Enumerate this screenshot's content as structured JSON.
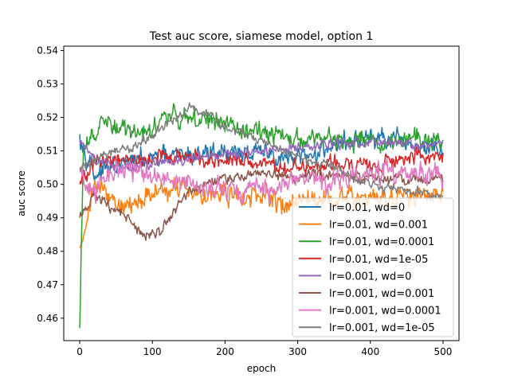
{
  "chart_data": {
    "type": "line",
    "title": "Test auc score, siamese model, option 1",
    "xlabel": "epoch",
    "ylabel": "auc score",
    "xlim": [
      -22,
      522
    ],
    "ylim": [
      0.4533,
      0.5413
    ],
    "xticks": [
      0,
      100,
      200,
      300,
      400,
      500
    ],
    "yticks": [
      0.46,
      0.47,
      0.48,
      0.49,
      0.5,
      0.51,
      0.52,
      0.53,
      0.54
    ],
    "ytick_labels": [
      "0.46",
      "0.47",
      "0.48",
      "0.49",
      "0.50",
      "0.51",
      "0.52",
      "0.53",
      "0.54"
    ],
    "grid": false,
    "legend_position": "lower-right",
    "epochs": 501,
    "series": [
      {
        "name": "lr=0.01, wd=0",
        "color": "#1f77b4",
        "keypoints": [
          [
            0,
            0.515
          ],
          [
            20,
            0.503
          ],
          [
            60,
            0.506
          ],
          [
            120,
            0.508
          ],
          [
            200,
            0.51
          ],
          [
            260,
            0.509
          ],
          [
            300,
            0.507
          ],
          [
            350,
            0.512
          ],
          [
            400,
            0.514
          ],
          [
            450,
            0.512
          ],
          [
            500,
            0.51
          ]
        ],
        "spread": 0.0075
      },
      {
        "name": "lr=0.01, wd=0.001",
        "color": "#ff7f0e",
        "keypoints": [
          [
            0,
            0.481
          ],
          [
            20,
            0.5
          ],
          [
            60,
            0.493
          ],
          [
            120,
            0.499
          ],
          [
            200,
            0.497
          ],
          [
            260,
            0.495
          ],
          [
            300,
            0.495
          ],
          [
            350,
            0.496
          ],
          [
            400,
            0.496
          ],
          [
            450,
            0.496
          ],
          [
            500,
            0.497
          ]
        ],
        "spread": 0.008
      },
      {
        "name": "lr=0.01, wd=0.0001",
        "color": "#2ca02c",
        "keypoints": [
          [
            0,
            0.457
          ],
          [
            5,
            0.51
          ],
          [
            30,
            0.518
          ],
          [
            80,
            0.515
          ],
          [
            130,
            0.521
          ],
          [
            200,
            0.518
          ],
          [
            260,
            0.515
          ],
          [
            300,
            0.513
          ],
          [
            350,
            0.514
          ],
          [
            400,
            0.513
          ],
          [
            450,
            0.514
          ],
          [
            500,
            0.514
          ]
        ],
        "spread": 0.0075
      },
      {
        "name": "lr=0.01, wd=1e-05",
        "color": "#d62728",
        "keypoints": [
          [
            0,
            0.5
          ],
          [
            20,
            0.506
          ],
          [
            60,
            0.507
          ],
          [
            120,
            0.508
          ],
          [
            200,
            0.507
          ],
          [
            260,
            0.506
          ],
          [
            300,
            0.505
          ],
          [
            350,
            0.506
          ],
          [
            400,
            0.506
          ],
          [
            450,
            0.508
          ],
          [
            500,
            0.508
          ]
        ],
        "spread": 0.006
      },
      {
        "name": "lr=0.001, wd=0",
        "color": "#9467bd",
        "keypoints": [
          [
            0,
            0.513
          ],
          [
            20,
            0.507
          ],
          [
            60,
            0.505
          ],
          [
            120,
            0.507
          ],
          [
            200,
            0.509
          ],
          [
            260,
            0.51
          ],
          [
            300,
            0.511
          ],
          [
            350,
            0.512
          ],
          [
            400,
            0.513
          ],
          [
            450,
            0.512
          ],
          [
            500,
            0.512
          ]
        ],
        "spread": 0.0035
      },
      {
        "name": "lr=0.001, wd=0.001",
        "color": "#8c564b",
        "keypoints": [
          [
            0,
            0.49
          ],
          [
            20,
            0.497
          ],
          [
            60,
            0.491
          ],
          [
            90,
            0.484
          ],
          [
            110,
            0.486
          ],
          [
            150,
            0.498
          ],
          [
            200,
            0.502
          ],
          [
            260,
            0.503
          ],
          [
            300,
            0.502
          ],
          [
            350,
            0.503
          ],
          [
            400,
            0.502
          ],
          [
            450,
            0.501
          ],
          [
            500,
            0.502
          ]
        ],
        "spread": 0.004
      },
      {
        "name": "lr=0.001, wd=0.0001",
        "color": "#e377c2",
        "keypoints": [
          [
            0,
            0.505
          ],
          [
            10,
            0.497
          ],
          [
            30,
            0.5
          ],
          [
            60,
            0.505
          ],
          [
            120,
            0.501
          ],
          [
            200,
            0.499
          ],
          [
            260,
            0.498
          ],
          [
            300,
            0.502
          ],
          [
            350,
            0.501
          ],
          [
            400,
            0.503
          ],
          [
            450,
            0.503
          ],
          [
            500,
            0.503
          ]
        ],
        "spread": 0.0085
      },
      {
        "name": "lr=0.001, wd=1e-05",
        "color": "#7f7f7f",
        "keypoints": [
          [
            0,
            0.505
          ],
          [
            30,
            0.508
          ],
          [
            80,
            0.512
          ],
          [
            120,
            0.518
          ],
          [
            150,
            0.523
          ],
          [
            180,
            0.521
          ],
          [
            200,
            0.517
          ],
          [
            230,
            0.515
          ],
          [
            260,
            0.512
          ],
          [
            300,
            0.508
          ],
          [
            350,
            0.505
          ],
          [
            400,
            0.5
          ],
          [
            450,
            0.498
          ],
          [
            500,
            0.496
          ]
        ],
        "spread": 0.0035
      }
    ]
  }
}
